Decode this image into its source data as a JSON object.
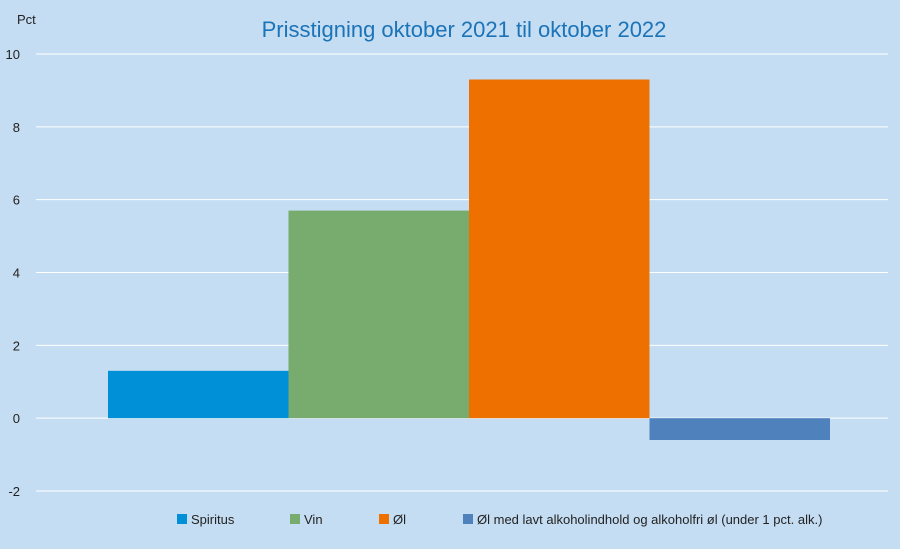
{
  "chart_data": {
    "type": "bar",
    "title": "Prisstigning oktober 2021 til oktober 2022",
    "ylabel": "Pct",
    "xlabel": "",
    "ylim": [
      -2,
      10
    ],
    "yticks": [
      -2,
      0,
      2,
      4,
      6,
      8,
      10
    ],
    "grid": true,
    "legend_position": "bottom",
    "series": [
      {
        "name": "Spiritus",
        "value": 1.3,
        "color": "#0090d8"
      },
      {
        "name": "Vin",
        "value": 5.7,
        "color": "#77ac6e"
      },
      {
        "name": "Øl",
        "value": 9.3,
        "color": "#ee7100"
      },
      {
        "name": "Øl med lavt alkoholindhold og alkoholfri øl (under 1 pct. alk.)",
        "value": -0.6,
        "color": "#4f81bd"
      }
    ]
  }
}
